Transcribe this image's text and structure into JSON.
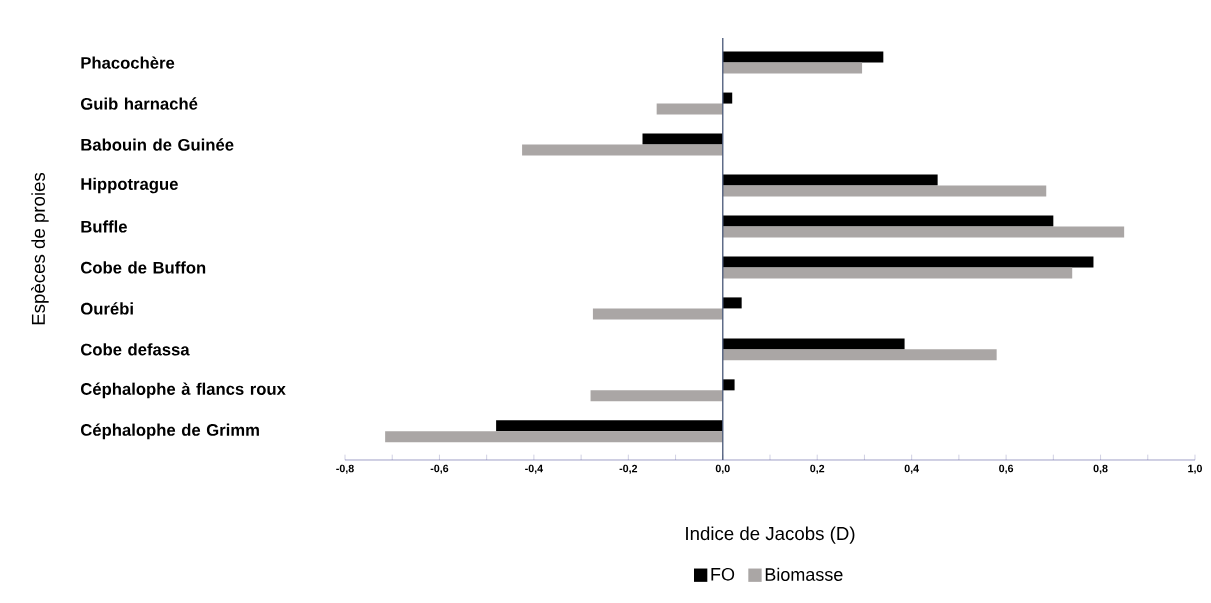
{
  "chart_data": {
    "type": "bar",
    "orientation": "horizontal",
    "xlabel": "Indice de Jacobs (D)",
    "ylabel": "Espèces de proies",
    "categories": [
      "Phacochère",
      "Guib harnaché",
      "Babouin de Guinée",
      "Hippotrague",
      "Buffle",
      "Cobe de Buffon",
      "Ourébi",
      "Cobe defassa",
      "Céphalophe à flancs roux",
      "Céphalophe de Grimm"
    ],
    "series": [
      {
        "name": "FO",
        "color": "#000000",
        "values": [
          0.34,
          0.02,
          -0.17,
          0.455,
          0.7,
          0.785,
          0.04,
          0.385,
          0.025,
          -0.48
        ]
      },
      {
        "name": "Biomasse",
        "color": "#aaa6a5",
        "values": [
          0.295,
          -0.14,
          -0.425,
          0.685,
          0.85,
          0.74,
          -0.275,
          0.58,
          -0.28,
          -0.715
        ]
      }
    ],
    "xlim": [
      -0.8,
      1.0
    ],
    "xticks": [
      {
        "value": -0.8,
        "label": "-0,8"
      },
      {
        "value": -0.6,
        "label": "-0,6"
      },
      {
        "value": -0.4,
        "label": "-0,4"
      },
      {
        "value": -0.2,
        "label": "-0,2"
      },
      {
        "value": 0.0,
        "label": "0,0"
      },
      {
        "value": 0.2,
        "label": "0,2"
      },
      {
        "value": 0.4,
        "label": "0,4"
      },
      {
        "value": 0.6,
        "label": "0,6"
      },
      {
        "value": 0.8,
        "label": "0,8"
      },
      {
        "value": 1.0,
        "label": "1,0"
      }
    ],
    "ref_lines": [
      {
        "axis": "x",
        "value": 0,
        "color": "#4c5a7a"
      }
    ],
    "grid": false,
    "legend": "bottom"
  }
}
